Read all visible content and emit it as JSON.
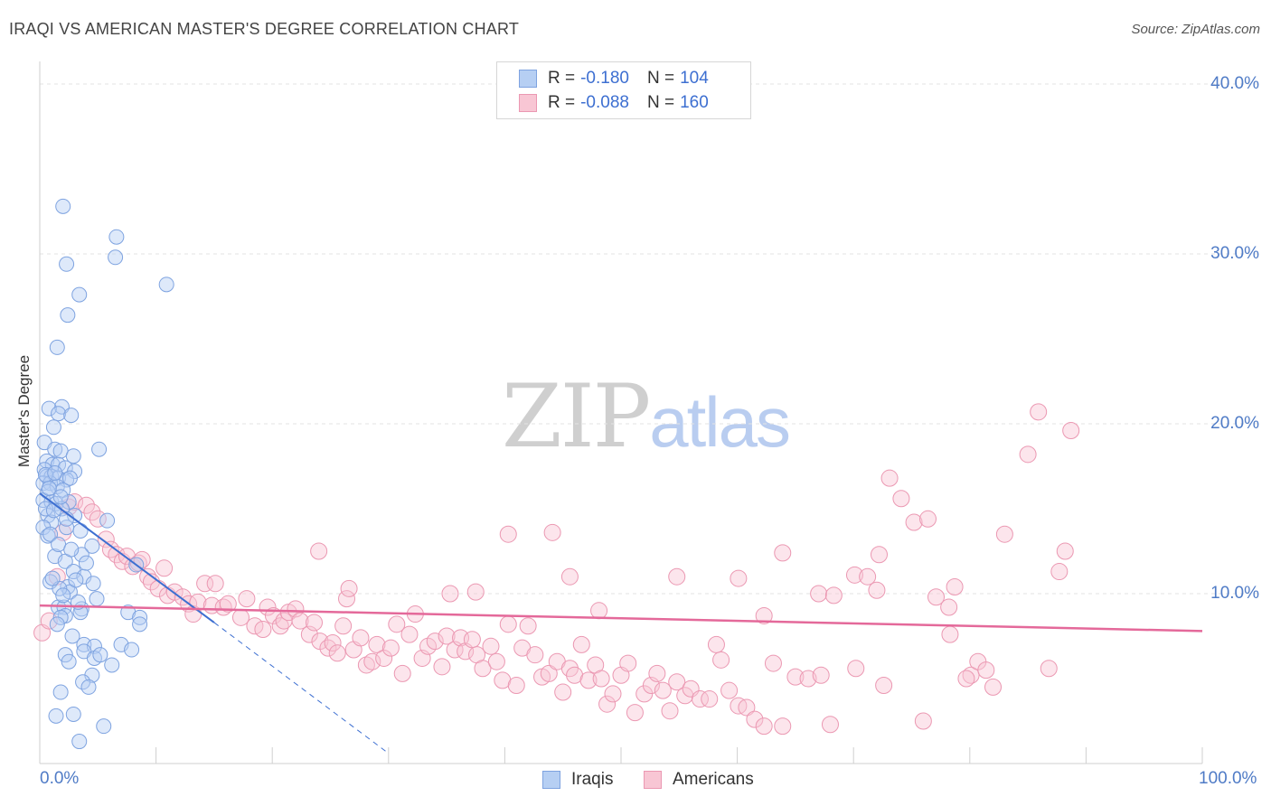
{
  "title": "IRAQI VS AMERICAN MASTER'S DEGREE CORRELATION CHART",
  "source": "Source: ZipAtlas.com",
  "watermark": {
    "zip": "ZIP",
    "atlas": "atlas"
  },
  "colors": {
    "blue": "#7ea3e0",
    "blue_fill": "#b6cff3",
    "blue_line": "#3d6fd1",
    "pink": "#eb98b2",
    "pink_fill": "#f8c6d4",
    "pink_line": "#e4699a",
    "axis_text": "#4f7bc6"
  },
  "legend": {
    "rows": [
      {
        "r_label": "R =",
        "r_value": "-0.180",
        "n_label": "N =",
        "n_value": "104"
      },
      {
        "r_label": "R =",
        "r_value": "-0.088",
        "n_label": "N =",
        "n_value": "160"
      }
    ]
  },
  "bottom_legend": {
    "iraqis": "Iraqis",
    "americans": "Americans"
  },
  "chart_data": {
    "type": "scatter",
    "title": "IRAQI VS AMERICAN MASTER'S DEGREE CORRELATION CHART",
    "xlabel": "",
    "ylabel": "Master's Degree",
    "xlim": [
      0,
      100
    ],
    "ylim": [
      0,
      40
    ],
    "x_ticks": [
      "0.0%",
      "100.0%"
    ],
    "y_ticks": [
      "10.0%",
      "20.0%",
      "30.0%",
      "40.0%"
    ],
    "y_tick_values": [
      10,
      20,
      30,
      40
    ],
    "grid": true,
    "series": [
      {
        "name": "Iraqis",
        "r": -0.18,
        "n": 104,
        "trend": {
          "x0": 0,
          "y0": 15.9,
          "x1": 15,
          "y1": 8.3,
          "dashed_to_x": 30,
          "dashed_to_y": 0.6
        },
        "points": [
          [
            2.0,
            32.8
          ],
          [
            6.6,
            31.0
          ],
          [
            6.5,
            29.8
          ],
          [
            2.3,
            29.4
          ],
          [
            10.9,
            28.2
          ],
          [
            3.4,
            27.6
          ],
          [
            2.4,
            26.4
          ],
          [
            1.5,
            24.5
          ],
          [
            1.9,
            21.0
          ],
          [
            0.8,
            20.9
          ],
          [
            1.6,
            20.6
          ],
          [
            2.7,
            20.5
          ],
          [
            1.2,
            19.8
          ],
          [
            0.4,
            18.9
          ],
          [
            1.3,
            18.5
          ],
          [
            1.8,
            18.4
          ],
          [
            5.1,
            18.5
          ],
          [
            2.9,
            18.1
          ],
          [
            0.6,
            17.8
          ],
          [
            1.1,
            17.6
          ],
          [
            1.6,
            17.6
          ],
          [
            2.2,
            17.4
          ],
          [
            0.4,
            17.3
          ],
          [
            3.0,
            17.2
          ],
          [
            0.6,
            16.9
          ],
          [
            1.0,
            16.9
          ],
          [
            1.6,
            16.8
          ],
          [
            2.3,
            16.7
          ],
          [
            0.3,
            16.5
          ],
          [
            0.9,
            16.5
          ],
          [
            1.5,
            16.3
          ],
          [
            0.7,
            16.0
          ],
          [
            2.0,
            16.1
          ],
          [
            0.3,
            15.5
          ],
          [
            1.0,
            15.4
          ],
          [
            1.4,
            15.3
          ],
          [
            2.5,
            15.4
          ],
          [
            1.9,
            15.0
          ],
          [
            0.7,
            14.6
          ],
          [
            3.0,
            14.6
          ],
          [
            1.0,
            14.2
          ],
          [
            5.8,
            14.3
          ],
          [
            0.3,
            13.9
          ],
          [
            3.5,
            13.7
          ],
          [
            2.3,
            13.9
          ],
          [
            0.7,
            13.4
          ],
          [
            4.5,
            12.8
          ],
          [
            1.3,
            12.2
          ],
          [
            3.6,
            12.3
          ],
          [
            2.2,
            11.9
          ],
          [
            8.3,
            11.7
          ],
          [
            2.9,
            11.3
          ],
          [
            3.8,
            11.0
          ],
          [
            4.6,
            10.6
          ],
          [
            0.9,
            10.7
          ],
          [
            2.4,
            10.4
          ],
          [
            2.6,
            10.1
          ],
          [
            1.7,
            10.3
          ],
          [
            1.6,
            9.2
          ],
          [
            2.1,
            9.2
          ],
          [
            3.6,
            9.1
          ],
          [
            3.5,
            8.9
          ],
          [
            2.2,
            8.7
          ],
          [
            1.8,
            8.6
          ],
          [
            7.6,
            8.9
          ],
          [
            8.6,
            8.6
          ],
          [
            8.6,
            8.2
          ],
          [
            3.8,
            7.0
          ],
          [
            4.7,
            6.9
          ],
          [
            7.0,
            7.0
          ],
          [
            3.8,
            6.6
          ],
          [
            4.7,
            6.2
          ],
          [
            7.9,
            6.7
          ],
          [
            2.2,
            6.4
          ],
          [
            2.5,
            6.0
          ],
          [
            4.5,
            5.2
          ],
          [
            3.7,
            4.8
          ],
          [
            1.8,
            4.2
          ],
          [
            2.9,
            2.9
          ],
          [
            5.5,
            2.2
          ],
          [
            3.4,
            1.3
          ],
          [
            0.5,
            17.0
          ],
          [
            1.3,
            17.1
          ],
          [
            2.6,
            16.8
          ],
          [
            0.8,
            16.2
          ],
          [
            1.8,
            15.7
          ],
          [
            0.5,
            15.0
          ],
          [
            1.2,
            14.9
          ],
          [
            2.3,
            14.4
          ],
          [
            0.9,
            13.5
          ],
          [
            1.6,
            12.9
          ],
          [
            2.7,
            12.6
          ],
          [
            4.0,
            11.8
          ],
          [
            1.1,
            10.9
          ],
          [
            3.1,
            10.8
          ],
          [
            2.0,
            9.9
          ],
          [
            3.3,
            9.5
          ],
          [
            4.9,
            9.7
          ],
          [
            1.5,
            8.2
          ],
          [
            2.8,
            7.5
          ],
          [
            5.2,
            6.4
          ],
          [
            6.2,
            5.8
          ],
          [
            4.2,
            4.5
          ],
          [
            1.4,
            2.8
          ]
        ]
      },
      {
        "name": "Americans",
        "r": -0.088,
        "n": 160,
        "trend": {
          "x0": 0,
          "y0": 9.3,
          "x1": 100,
          "y1": 7.8
        },
        "points": [
          [
            0.2,
            7.7
          ],
          [
            0.8,
            8.4
          ],
          [
            1.5,
            11.0
          ],
          [
            2.0,
            13.6
          ],
          [
            2.5,
            15.1
          ],
          [
            3.0,
            15.4
          ],
          [
            4.0,
            15.2
          ],
          [
            4.5,
            14.8
          ],
          [
            5.0,
            14.4
          ],
          [
            5.7,
            13.2
          ],
          [
            6.1,
            12.6
          ],
          [
            6.6,
            12.3
          ],
          [
            7.1,
            11.9
          ],
          [
            7.5,
            12.2
          ],
          [
            8.0,
            11.6
          ],
          [
            8.5,
            11.8
          ],
          [
            8.8,
            12.0
          ],
          [
            9.3,
            11.0
          ],
          [
            9.6,
            10.7
          ],
          [
            10.2,
            10.3
          ],
          [
            10.7,
            11.5
          ],
          [
            11.0,
            9.9
          ],
          [
            11.6,
            10.1
          ],
          [
            12.3,
            9.8
          ],
          [
            12.8,
            9.4
          ],
          [
            13.2,
            8.8
          ],
          [
            13.6,
            9.5
          ],
          [
            14.2,
            10.6
          ],
          [
            14.8,
            9.3
          ],
          [
            15.1,
            10.6
          ],
          [
            15.8,
            9.2
          ],
          [
            16.2,
            9.4
          ],
          [
            17.3,
            8.6
          ],
          [
            17.8,
            9.7
          ],
          [
            18.5,
            8.1
          ],
          [
            19.2,
            7.9
          ],
          [
            19.6,
            9.2
          ],
          [
            20.1,
            8.7
          ],
          [
            20.7,
            8.1
          ],
          [
            21.0,
            8.4
          ],
          [
            21.4,
            8.9
          ],
          [
            22.0,
            9.1
          ],
          [
            22.4,
            8.4
          ],
          [
            23.2,
            7.6
          ],
          [
            23.6,
            8.3
          ],
          [
            24.1,
            7.2
          ],
          [
            24.8,
            6.8
          ],
          [
            25.2,
            7.1
          ],
          [
            25.6,
            6.5
          ],
          [
            26.1,
            8.1
          ],
          [
            26.4,
            9.7
          ],
          [
            27.0,
            6.7
          ],
          [
            27.6,
            7.4
          ],
          [
            28.1,
            5.8
          ],
          [
            28.6,
            6.0
          ],
          [
            29.0,
            7.0
          ],
          [
            29.6,
            6.2
          ],
          [
            30.2,
            6.8
          ],
          [
            30.7,
            8.2
          ],
          [
            31.2,
            5.3
          ],
          [
            31.8,
            7.6
          ],
          [
            32.3,
            8.8
          ],
          [
            32.9,
            6.2
          ],
          [
            33.4,
            6.9
          ],
          [
            34.0,
            7.2
          ],
          [
            34.6,
            5.7
          ],
          [
            35.0,
            7.5
          ],
          [
            35.7,
            6.7
          ],
          [
            36.2,
            7.4
          ],
          [
            36.6,
            6.6
          ],
          [
            37.2,
            7.3
          ],
          [
            37.6,
            6.4
          ],
          [
            38.1,
            5.6
          ],
          [
            38.8,
            6.9
          ],
          [
            39.3,
            6.0
          ],
          [
            39.8,
            4.9
          ],
          [
            40.3,
            8.2
          ],
          [
            41.0,
            4.6
          ],
          [
            41.5,
            6.8
          ],
          [
            42.0,
            8.1
          ],
          [
            42.6,
            6.4
          ],
          [
            43.2,
            5.1
          ],
          [
            43.8,
            5.3
          ],
          [
            44.5,
            6.0
          ],
          [
            45.0,
            4.2
          ],
          [
            45.6,
            5.6
          ],
          [
            46.0,
            5.2
          ],
          [
            46.6,
            7.0
          ],
          [
            47.2,
            4.9
          ],
          [
            47.8,
            5.8
          ],
          [
            48.3,
            5.0
          ],
          [
            48.8,
            3.5
          ],
          [
            49.3,
            4.1
          ],
          [
            50.0,
            5.2
          ],
          [
            50.6,
            5.9
          ],
          [
            51.2,
            3.0
          ],
          [
            52.0,
            4.1
          ],
          [
            52.6,
            4.6
          ],
          [
            53.1,
            5.3
          ],
          [
            53.6,
            4.3
          ],
          [
            54.2,
            3.1
          ],
          [
            54.8,
            4.8
          ],
          [
            55.5,
            4.0
          ],
          [
            56.0,
            4.4
          ],
          [
            56.8,
            3.8
          ],
          [
            57.6,
            3.8
          ],
          [
            58.2,
            7.0
          ],
          [
            58.6,
            6.1
          ],
          [
            59.3,
            4.3
          ],
          [
            60.1,
            3.4
          ],
          [
            60.8,
            3.3
          ],
          [
            61.5,
            2.6
          ],
          [
            62.3,
            2.2
          ],
          [
            63.1,
            5.9
          ],
          [
            63.9,
            2.2
          ],
          [
            65.0,
            5.1
          ],
          [
            66.1,
            5.0
          ],
          [
            67.2,
            5.2
          ],
          [
            68.0,
            2.3
          ],
          [
            70.2,
            5.6
          ],
          [
            72.6,
            4.6
          ],
          [
            76.0,
            2.5
          ],
          [
            24.0,
            12.5
          ],
          [
            26.6,
            10.3
          ],
          [
            35.3,
            10.0
          ],
          [
            37.5,
            10.1
          ],
          [
            40.3,
            13.5
          ],
          [
            44.1,
            13.6
          ],
          [
            45.6,
            11.0
          ],
          [
            48.1,
            9.0
          ],
          [
            54.8,
            11.0
          ],
          [
            60.1,
            10.9
          ],
          [
            62.3,
            8.7
          ],
          [
            63.9,
            12.4
          ],
          [
            67.0,
            10.0
          ],
          [
            68.3,
            9.9
          ],
          [
            70.1,
            11.1
          ],
          [
            71.2,
            11.0
          ],
          [
            72.2,
            12.3
          ],
          [
            73.1,
            16.8
          ],
          [
            72.0,
            10.2
          ],
          [
            74.1,
            15.6
          ],
          [
            75.2,
            14.2
          ],
          [
            76.4,
            14.4
          ],
          [
            77.1,
            9.8
          ],
          [
            78.2,
            9.2
          ],
          [
            78.7,
            10.4
          ],
          [
            78.3,
            7.6
          ],
          [
            80.1,
            5.2
          ],
          [
            80.7,
            6.0
          ],
          [
            81.4,
            5.5
          ],
          [
            82.0,
            4.5
          ],
          [
            83.0,
            13.5
          ],
          [
            85.0,
            18.2
          ],
          [
            85.9,
            20.7
          ],
          [
            86.8,
            5.6
          ],
          [
            87.7,
            11.3
          ],
          [
            88.2,
            12.5
          ],
          [
            88.7,
            19.6
          ],
          [
            79.7,
            5.0
          ]
        ]
      }
    ]
  }
}
